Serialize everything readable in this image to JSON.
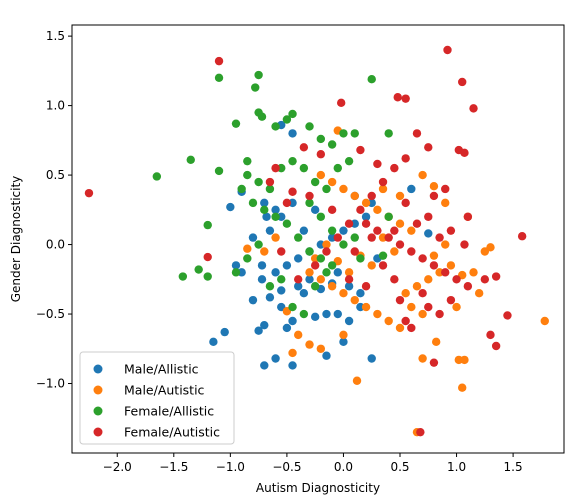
{
  "chart_data": {
    "type": "scatter",
    "title": "",
    "xlabel": "Autism Diagnosticity",
    "ylabel": "Gender Diagnosticity",
    "xlim": [
      -2.4,
      1.95
    ],
    "ylim": [
      -1.5,
      1.58
    ],
    "xticks": [
      -2.0,
      -1.5,
      -1.0,
      -0.5,
      0.0,
      0.5,
      1.0,
      1.5
    ],
    "yticks": [
      -1.0,
      -0.5,
      0.0,
      0.5,
      1.0,
      1.5
    ],
    "xtick_labels": [
      "−2.0",
      "−1.5",
      "−1.0",
      "−0.5",
      "0.0",
      "0.5",
      "1.0",
      "1.5"
    ],
    "ytick_labels": [
      "−1.0",
      "−0.5",
      "0.0",
      "0.5",
      "1.0",
      "1.5"
    ],
    "grid": false,
    "legend_position": "lower-left",
    "series": [
      {
        "name": "Male/Allistic",
        "color": "#1f77b4",
        "points": [
          [
            -1.0,
            0.27
          ],
          [
            -0.9,
            0.38
          ],
          [
            -0.68,
            0.2
          ],
          [
            -0.55,
            0.86
          ],
          [
            -0.45,
            0.8
          ],
          [
            -1.15,
            -0.7
          ],
          [
            -1.05,
            -0.63
          ],
          [
            -0.7,
            -0.87
          ],
          [
            -0.45,
            -0.87
          ],
          [
            -0.6,
            -0.82
          ],
          [
            -0.5,
            -0.6
          ],
          [
            -0.7,
            -0.58
          ],
          [
            -0.25,
            -0.52
          ],
          [
            -0.45,
            -0.55
          ],
          [
            -0.15,
            -0.5
          ],
          [
            -0.8,
            -0.4
          ],
          [
            -0.65,
            -0.38
          ],
          [
            -0.55,
            -0.33
          ],
          [
            -0.4,
            -0.3
          ],
          [
            -0.35,
            -0.35
          ],
          [
            -0.3,
            -0.25
          ],
          [
            -0.2,
            -0.32
          ],
          [
            -0.1,
            -0.28
          ],
          [
            -0.72,
            -0.25
          ],
          [
            -0.6,
            -0.2
          ],
          [
            -0.5,
            -0.15
          ],
          [
            -0.4,
            -0.1
          ],
          [
            -0.3,
            -0.05
          ],
          [
            -0.2,
            0.0
          ],
          [
            -0.1,
            0.05
          ],
          [
            0.0,
            0.1
          ],
          [
            0.1,
            0.15
          ],
          [
            0.2,
            0.2
          ],
          [
            0.05,
            -0.3
          ],
          [
            0.15,
            -0.35
          ],
          [
            -0.05,
            -0.5
          ],
          [
            0.05,
            -0.55
          ],
          [
            0.15,
            -0.45
          ],
          [
            0.25,
            -0.82
          ],
          [
            0.0,
            -0.7
          ],
          [
            -0.72,
            -0.15
          ],
          [
            -0.65,
            0.1
          ],
          [
            -0.55,
            0.2
          ],
          [
            -0.6,
            0.25
          ],
          [
            -0.7,
            0.3
          ],
          [
            -0.8,
            0.05
          ],
          [
            -0.9,
            -0.2
          ],
          [
            -0.95,
            -0.15
          ],
          [
            -0.55,
            -0.45
          ],
          [
            -0.45,
            0.3
          ],
          [
            -0.35,
            0.1
          ],
          [
            -0.25,
            0.25
          ],
          [
            0.25,
            0.3
          ],
          [
            0.3,
            -0.1
          ],
          [
            -0.15,
            -0.8
          ],
          [
            -0.05,
            -0.2
          ],
          [
            0.1,
            0.35
          ],
          [
            -0.75,
            -0.62
          ],
          [
            0.6,
            0.4
          ],
          [
            0.75,
            0.08
          ]
        ]
      },
      {
        "name": "Male/Autistic",
        "color": "#ff7f0e",
        "points": [
          [
            0.65,
            -1.35
          ],
          [
            1.05,
            -1.03
          ],
          [
            0.12,
            -0.98
          ],
          [
            1.02,
            -0.83
          ],
          [
            1.07,
            -0.83
          ],
          [
            0.7,
            -0.82
          ],
          [
            1.78,
            -0.55
          ],
          [
            0.82,
            -0.7
          ],
          [
            -0.3,
            -0.72
          ],
          [
            -0.2,
            -0.75
          ],
          [
            -0.45,
            -0.78
          ],
          [
            0.5,
            -0.6
          ],
          [
            0.4,
            -0.55
          ],
          [
            0.3,
            -0.5
          ],
          [
            0.2,
            -0.45
          ],
          [
            0.1,
            -0.4
          ],
          [
            0.0,
            -0.35
          ],
          [
            -0.1,
            -0.3
          ],
          [
            -0.2,
            -0.25
          ],
          [
            -0.3,
            -0.2
          ],
          [
            0.55,
            -0.35
          ],
          [
            0.65,
            -0.3
          ],
          [
            0.75,
            -0.25
          ],
          [
            0.85,
            -0.2
          ],
          [
            0.95,
            -0.15
          ],
          [
            1.05,
            -0.22
          ],
          [
            1.15,
            -0.2
          ],
          [
            1.25,
            -0.05
          ],
          [
            1.3,
            -0.02
          ],
          [
            1.2,
            -0.35
          ],
          [
            0.6,
            0.1
          ],
          [
            0.5,
            0.15
          ],
          [
            0.4,
            0.2
          ],
          [
            0.3,
            0.25
          ],
          [
            0.2,
            0.3
          ],
          [
            0.1,
            0.35
          ],
          [
            0.0,
            0.4
          ],
          [
            -0.1,
            0.45
          ],
          [
            -0.2,
            0.5
          ],
          [
            -0.05,
            0.82
          ],
          [
            0.7,
            0.5
          ],
          [
            0.8,
            0.42
          ],
          [
            0.9,
            0.3
          ],
          [
            1.1,
            0.2
          ],
          [
            -0.7,
            -0.05
          ],
          [
            -0.85,
            -0.03
          ],
          [
            -0.6,
            0.05
          ],
          [
            -0.5,
            -0.48
          ],
          [
            -0.4,
            -0.65
          ],
          [
            0.35,
            0.05
          ],
          [
            0.45,
            -0.05
          ],
          [
            0.25,
            -0.15
          ],
          [
            0.15,
            -0.08
          ],
          [
            0.05,
            -0.2
          ],
          [
            -0.05,
            -0.12
          ],
          [
            0.8,
            -0.08
          ],
          [
            0.9,
            0.0
          ],
          [
            0.6,
            -0.45
          ],
          [
            0.7,
            -0.5
          ],
          [
            1.0,
            -0.45
          ],
          [
            0.35,
            0.4
          ],
          [
            0.5,
            0.35
          ],
          [
            -0.15,
            0.0
          ],
          [
            -0.25,
            -0.1
          ],
          [
            0.0,
            -0.65
          ]
        ]
      },
      {
        "name": "Female/Allistic",
        "color": "#2ca02c",
        "points": [
          [
            -1.65,
            0.49
          ],
          [
            -1.35,
            0.61
          ],
          [
            -1.42,
            -0.23
          ],
          [
            -1.28,
            -0.18
          ],
          [
            -1.2,
            -0.23
          ],
          [
            -1.2,
            0.14
          ],
          [
            -1.1,
            1.2
          ],
          [
            -1.1,
            0.53
          ],
          [
            -0.85,
            0.5
          ],
          [
            -0.9,
            0.4
          ],
          [
            -0.75,
            1.22
          ],
          [
            -0.78,
            1.13
          ],
          [
            -0.72,
            0.92
          ],
          [
            -0.75,
            0.95
          ],
          [
            -0.6,
            0.85
          ],
          [
            -0.5,
            0.9
          ],
          [
            -0.45,
            0.94
          ],
          [
            -0.3,
            0.85
          ],
          [
            -0.2,
            0.76
          ],
          [
            -0.1,
            0.72
          ],
          [
            0.0,
            0.8
          ],
          [
            0.1,
            0.8
          ],
          [
            0.25,
            1.19
          ],
          [
            0.4,
            0.8
          ],
          [
            -0.95,
            0.87
          ],
          [
            -0.85,
            0.6
          ],
          [
            -0.75,
            0.45
          ],
          [
            -0.65,
            0.4
          ],
          [
            -0.55,
            0.55
          ],
          [
            -0.45,
            0.6
          ],
          [
            -0.35,
            0.55
          ],
          [
            -0.25,
            0.45
          ],
          [
            -0.15,
            0.4
          ],
          [
            -0.05,
            0.55
          ],
          [
            0.05,
            0.6
          ],
          [
            -0.8,
            0.3
          ],
          [
            -0.7,
            0.25
          ],
          [
            -0.6,
            0.2
          ],
          [
            -0.5,
            0.15
          ],
          [
            -0.4,
            0.05
          ],
          [
            -0.3,
            -0.05
          ],
          [
            -0.2,
            -0.1
          ],
          [
            -0.1,
            -0.15
          ],
          [
            0.0,
            0.0
          ],
          [
            0.1,
            0.05
          ],
          [
            -0.95,
            -0.2
          ],
          [
            -0.85,
            -0.1
          ],
          [
            -0.75,
            0.0
          ],
          [
            -0.65,
            -0.3
          ],
          [
            -0.55,
            -0.25
          ],
          [
            -0.45,
            -0.45
          ],
          [
            -0.35,
            -0.5
          ],
          [
            -0.25,
            -0.3
          ],
          [
            -0.15,
            -0.2
          ],
          [
            0.15,
            -0.1
          ],
          [
            0.35,
            -0.08
          ],
          [
            0.4,
            0.2
          ],
          [
            -0.3,
            0.3
          ],
          [
            -0.2,
            0.2
          ],
          [
            -0.1,
            0.1
          ]
        ]
      },
      {
        "name": "Female/Autistic",
        "color": "#d62728",
        "points": [
          [
            -2.25,
            0.37
          ],
          [
            -1.1,
            1.32
          ],
          [
            -1.2,
            -0.09
          ],
          [
            0.92,
            1.4
          ],
          [
            1.05,
            1.17
          ],
          [
            1.15,
            0.98
          ],
          [
            0.48,
            1.06
          ],
          [
            0.55,
            1.05
          ],
          [
            -0.02,
            1.02
          ],
          [
            1.02,
            0.68
          ],
          [
            1.07,
            0.66
          ],
          [
            0.65,
            0.8
          ],
          [
            0.75,
            0.7
          ],
          [
            0.55,
            0.62
          ],
          [
            0.45,
            0.55
          ],
          [
            0.35,
            0.45
          ],
          [
            0.25,
            0.35
          ],
          [
            0.15,
            0.25
          ],
          [
            0.05,
            0.15
          ],
          [
            -0.05,
            0.05
          ],
          [
            -0.15,
            -0.05
          ],
          [
            -0.25,
            -0.15
          ],
          [
            1.58,
            0.06
          ],
          [
            1.45,
            -0.51
          ],
          [
            1.3,
            -0.65
          ],
          [
            1.35,
            -0.73
          ],
          [
            1.35,
            -0.23
          ],
          [
            1.25,
            -0.25
          ],
          [
            1.1,
            -0.3
          ],
          [
            1.0,
            -0.25
          ],
          [
            0.9,
            -0.2
          ],
          [
            0.8,
            -0.15
          ],
          [
            0.7,
            -0.1
          ],
          [
            0.6,
            -0.05
          ],
          [
            0.5,
            0.0
          ],
          [
            0.4,
            0.05
          ],
          [
            0.3,
            0.1
          ],
          [
            0.2,
            0.15
          ],
          [
            1.07,
            0.0
          ],
          [
            0.95,
            0.1
          ],
          [
            0.85,
            0.05
          ],
          [
            0.75,
            0.2
          ],
          [
            0.65,
            0.15
          ],
          [
            0.55,
            0.3
          ],
          [
            0.45,
            -0.25
          ],
          [
            0.5,
            -0.4
          ],
          [
            0.55,
            -0.55
          ],
          [
            0.6,
            -0.6
          ],
          [
            0.7,
            -0.35
          ],
          [
            0.75,
            -0.45
          ],
          [
            0.85,
            -0.5
          ],
          [
            0.95,
            -0.4
          ],
          [
            0.68,
            -1.35
          ],
          [
            0.8,
            -0.85
          ],
          [
            -0.6,
            0.55
          ],
          [
            -0.45,
            0.38
          ],
          [
            -0.35,
            0.7
          ],
          [
            -0.2,
            0.65
          ],
          [
            0.15,
            0.68
          ],
          [
            0.3,
            0.58
          ],
          [
            -0.55,
            -0.05
          ],
          [
            -0.5,
            0.3
          ],
          [
            -0.3,
            0.35
          ],
          [
            -0.1,
            0.25
          ],
          [
            0.1,
            -0.05
          ],
          [
            0.25,
            0.05
          ],
          [
            0.35,
            -0.15
          ],
          [
            0.45,
            0.1
          ],
          [
            1.1,
            0.2
          ],
          [
            0.9,
            0.4
          ],
          [
            0.8,
            0.35
          ],
          [
            -0.65,
            0.45
          ],
          [
            -0.4,
            -0.25
          ],
          [
            0.05,
            -0.25
          ],
          [
            0.2,
            -0.3
          ]
        ]
      }
    ]
  }
}
